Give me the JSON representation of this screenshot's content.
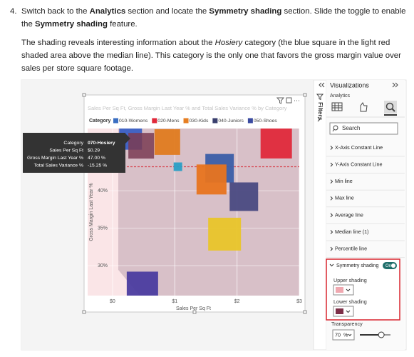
{
  "instructions": {
    "step_number": "4.",
    "step_runs": [
      {
        "text": "Switch back to the "
      },
      {
        "text": "Analytics",
        "bold": true
      },
      {
        "text": " section and locate the "
      },
      {
        "text": "Symmetry shading",
        "bold": true
      },
      {
        "text": " section. Slide the toggle to enable the "
      },
      {
        "text": "Symmetry shading",
        "bold": true
      },
      {
        "text": " feature."
      }
    ],
    "note_runs": [
      {
        "text": "The shading reveals interesting information about the "
      },
      {
        "text": "Hosiery",
        "italic": true
      },
      {
        "text": " category (the blue square in the light red shaded area above the median line). This category is the only one that favors the gross margin value over sales per store square footage."
      }
    ]
  },
  "chart_data": {
    "type": "scatter",
    "title": "Sales Per Sq Ft, Gross Margin Last Year % and Total Sales Variance % by Category",
    "x_label": "Sales Per Sq Ft",
    "y_label": "Gross Margin Last Year %",
    "legend_title": "Category",
    "legend": [
      {
        "name": "010-Womens",
        "color": "#3b6fc2"
      },
      {
        "name": "020-Mens",
        "color": "#e0293b"
      },
      {
        "name": "030-Kids",
        "color": "#e67e22"
      },
      {
        "name": "040-Juniors",
        "color": "#3a3f6e"
      },
      {
        "name": "050-Shoes",
        "color": "#3a4aa0"
      }
    ],
    "points": [
      {
        "x": 0.29,
        "y": 47.0,
        "size": 32,
        "color": "#3a5fc4"
      },
      {
        "x": 0.46,
        "y": 46.0,
        "size": 36,
        "color": "#7a3b52"
      },
      {
        "x": 0.88,
        "y": 46.5,
        "size": 36,
        "color": "#e07b20"
      },
      {
        "x": 2.63,
        "y": 46.4,
        "size": 44,
        "color": "#e0293b"
      },
      {
        "x": 1.72,
        "y": 43.0,
        "size": 40,
        "color": "#3b5ea8"
      },
      {
        "x": 1.05,
        "y": 43.2,
        "size": 12,
        "color": "#2a9fc6"
      },
      {
        "x": 1.59,
        "y": 41.5,
        "size": 42,
        "color": "#e8741f"
      },
      {
        "x": 2.11,
        "y": 39.2,
        "size": 40,
        "color": "#4a4a82"
      },
      {
        "x": 1.8,
        "y": 34.2,
        "size": 46,
        "color": "#e9c52a"
      },
      {
        "x": 0.48,
        "y": 27.1,
        "size": 44,
        "color": "#4b3ca0"
      }
    ],
    "median_line": {
      "y": 43.2,
      "color": "#d64550"
    },
    "xlim": [
      -0.4,
      3
    ],
    "ylim": [
      26,
      48.3
    ],
    "xticks": [
      {
        "value": 0,
        "label": "$0"
      },
      {
        "value": 1,
        "label": "$1"
      },
      {
        "value": 2,
        "label": "$2"
      },
      {
        "value": 3,
        "label": "$3"
      }
    ],
    "yticks": [
      {
        "value": 30,
        "label": "30%"
      },
      {
        "value": 35,
        "label": "35%"
      },
      {
        "value": 40,
        "label": "40%"
      }
    ],
    "grid": true
  },
  "tooltip": {
    "rows": [
      [
        "Category",
        "070-Hosiery"
      ],
      [
        "Sales Per Sq Ft",
        "$0.29"
      ],
      [
        "Gross Margin Last Year %",
        "47.00 %"
      ],
      [
        "Total Sales Variance %",
        "-15.25 %"
      ]
    ]
  },
  "filters_pane": {
    "label": "Filters"
  },
  "visualizations_pane": {
    "title": "Visualizations",
    "tab": "Analytics",
    "search_placeholder": "Search",
    "items": [
      "X-Axis Constant Line",
      "Y-Axis Constant Line",
      "Min line",
      "Max line",
      "Average line",
      "Median line (1)",
      "Percentile line"
    ],
    "symmetry": {
      "label": "Symmetry shading",
      "toggle": "On",
      "upper_label": "Upper shading",
      "upper_color": "#f0a8b0",
      "lower_label": "Lower shading",
      "lower_color": "#7d2f48",
      "transparency_label": "Transparency",
      "transparency_value": 70,
      "transparency_unit": "%"
    }
  }
}
